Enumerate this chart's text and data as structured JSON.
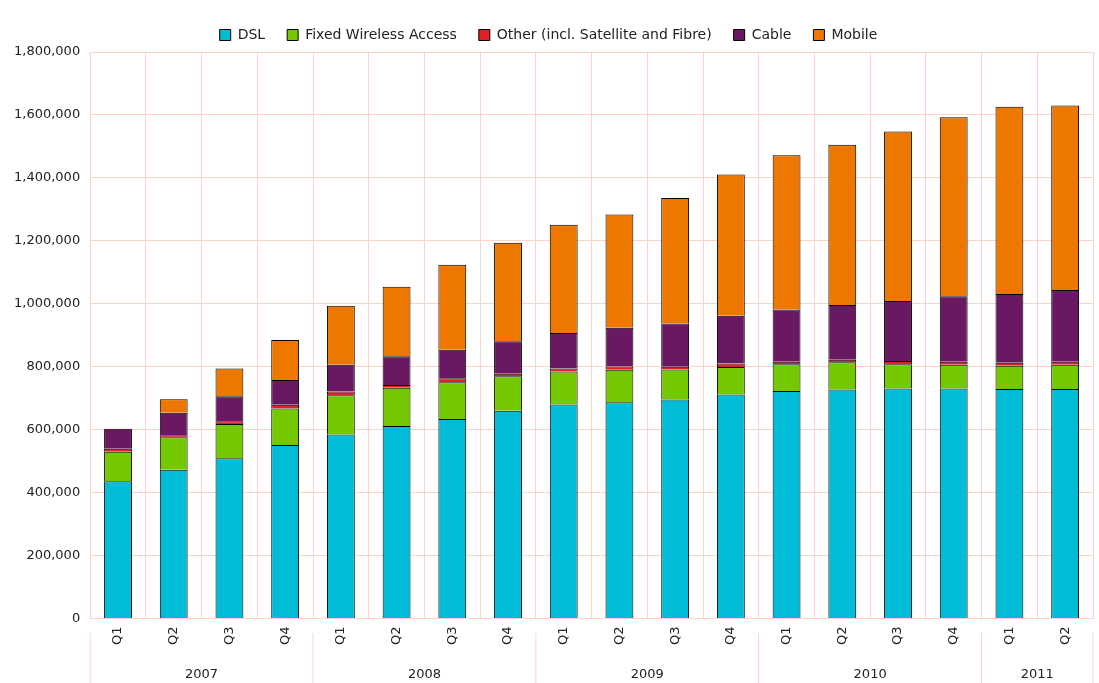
{
  "chart_data": {
    "type": "bar",
    "stacked": true,
    "categories": [
      "Q1",
      "Q2",
      "Q3",
      "Q4",
      "Q1",
      "Q2",
      "Q3",
      "Q4",
      "Q1",
      "Q2",
      "Q3",
      "Q4",
      "Q1",
      "Q2",
      "Q3",
      "Q4",
      "Q1",
      "Q2"
    ],
    "annotations": [
      "2007",
      "2008",
      "2009",
      "2010",
      "2011"
    ],
    "series": [
      {
        "name": "DSL",
        "color": "#00bcd6",
        "values": [
          436000,
          473000,
          509000,
          551000,
          585000,
          612000,
          634000,
          660000,
          680000,
          687000,
          696000,
          712000,
          723000,
          728000,
          731000,
          731000,
          729000,
          729000
        ]
      },
      {
        "name": "Fixed Wireless Access",
        "color": "#74c800",
        "values": [
          94000,
          103000,
          109000,
          116000,
          124000,
          121000,
          117000,
          110000,
          105000,
          103000,
          95000,
          87000,
          85000,
          86000,
          77000,
          75000,
          74000,
          77000
        ]
      },
      {
        "name": "Other (incl. Satellite and Fibre)",
        "color": "#e31e24",
        "values": [
          9000,
          6000,
          9000,
          12000,
          12000,
          9000,
          12000,
          8000,
          9000,
          11000,
          9000,
          11000,
          8000,
          8000,
          10000,
          10000,
          10000,
          10000
        ]
      },
      {
        "name": "Cable",
        "color": "#6a1862",
        "values": [
          64000,
          72000,
          79000,
          79000,
          85000,
          91000,
          91000,
          103000,
          113000,
          123000,
          137000,
          152000,
          166000,
          174000,
          191000,
          208000,
          218000,
          228000
        ]
      },
      {
        "name": "Mobile",
        "color": "#ee7700",
        "values": [
          0,
          43000,
          88000,
          127000,
          188000,
          221000,
          270000,
          313000,
          344000,
          360000,
          399000,
          449000,
          490000,
          509000,
          538000,
          569000,
          595000,
          586000
        ]
      }
    ],
    "ylim": [
      0,
      1800000
    ],
    "yticks": [
      0,
      {
        "value": 200000,
        "label": "200,000"
      },
      {
        "value": 400000,
        "label": "400,000"
      },
      {
        "value": 600000,
        "label": "600,000"
      },
      {
        "value": 800000,
        "label": "800,000"
      },
      {
        "value": 1000000,
        "label": "1,000,000"
      },
      {
        "value": 1200000,
        "label": "1,200,000"
      },
      {
        "value": 1400000,
        "label": "1,400,000"
      },
      {
        "value": 1600000,
        "label": "1,600,000"
      },
      {
        "value": 1800000,
        "label": "1,800,000"
      }
    ],
    "grid": true,
    "legend": "top"
  }
}
